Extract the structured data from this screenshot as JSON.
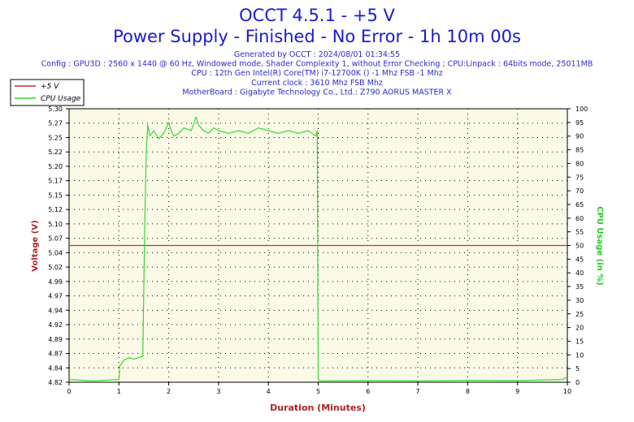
{
  "header": {
    "title_line1": "OCCT 4.5.1 - +5 V",
    "title_line2": "Power Supply - Finished - No Error - 1h 10m 00s",
    "info": [
      "Generated by OCCT : 2024/08/01 01:34:55",
      "Config : GPU3D : 2560 x 1440 @ 60 Hz, Windowed mode, Shader Complexity 1, without Error Checking ; CPU:Linpack : 64bits mode, 25011MB",
      "CPU : 12th Gen Intel(R) Core(TM) i7-12700K () -1 Mhz FSB -1 Mhz",
      "Current clock : 3610 Mhz FSB  Mhz",
      "MotherBoard : Gigabyte Technology Co., Ltd.: Z790 AORUS MASTER X"
    ]
  },
  "legend": [
    {
      "label": "+5 V",
      "color": "#c83232"
    },
    {
      "label": "CPU Usage",
      "color": "#32dc32"
    }
  ],
  "colors": {
    "plot_bg": "#fafae6",
    "grid": "#000000",
    "voltage": "#c83232",
    "cpu": "#32dc32"
  },
  "chart_data": {
    "type": "line",
    "xlabel": "Duration (Minutes)",
    "ylabel": "Voltage (V)",
    "y2label": "CPU Usage (in %)",
    "xlim": [
      0,
      10
    ],
    "ylim": [
      4.82,
      5.32
    ],
    "y2lim": [
      0,
      100
    ],
    "x_ticks": [
      "0",
      "1",
      "2",
      "3",
      "4",
      "5",
      "6",
      "7",
      "8",
      "9",
      "10"
    ],
    "y_ticks": [
      "4.82",
      "4.84",
      "4.87",
      "4.89",
      "4.92",
      "4.94",
      "4.97",
      "4.99",
      "5.02",
      "5.04",
      "5.07",
      "5.10",
      "5.12",
      "5.15",
      "5.17",
      "5.20",
      "5.22",
      "5.25",
      "5.27",
      "5.30"
    ],
    "y2_ticks": [
      "0",
      "5",
      "10",
      "15",
      "20",
      "25",
      "30",
      "35",
      "40",
      "45",
      "50",
      "55",
      "60",
      "65",
      "70",
      "75",
      "80",
      "85",
      "90",
      "95",
      "100"
    ],
    "grid": true,
    "legend_position": "top-left",
    "series": [
      {
        "name": "+5 V",
        "axis": "left",
        "x": [
          0,
          10
        ],
        "y": [
          5.07,
          5.07
        ]
      },
      {
        "name": "CPU Usage",
        "axis": "right",
        "x": [
          0,
          0.5,
          1.0,
          1.02,
          1.1,
          1.2,
          1.3,
          1.4,
          1.48,
          1.52,
          1.55,
          1.58,
          1.62,
          1.7,
          1.8,
          1.9,
          2.0,
          2.05,
          2.1,
          2.2,
          2.3,
          2.45,
          2.55,
          2.6,
          2.7,
          2.8,
          2.9,
          3.0,
          3.2,
          3.4,
          3.6,
          3.8,
          4.0,
          4.2,
          4.4,
          4.6,
          4.8,
          4.95,
          4.98,
          5.0,
          5.05,
          6,
          7,
          8,
          9,
          9.9,
          10
        ],
        "y": [
          1,
          0.5,
          1,
          6,
          8,
          9,
          8.5,
          9,
          9.5,
          60,
          85,
          94,
          90,
          92,
          89,
          91,
          95,
          92,
          90,
          91,
          93,
          92,
          97,
          94,
          92,
          91,
          93,
          92,
          91,
          92,
          91,
          93,
          92,
          91,
          92,
          91,
          92,
          90,
          92,
          1,
          0.5,
          0.6,
          0.5,
          0.7,
          0.6,
          1,
          2
        ]
      }
    ]
  }
}
